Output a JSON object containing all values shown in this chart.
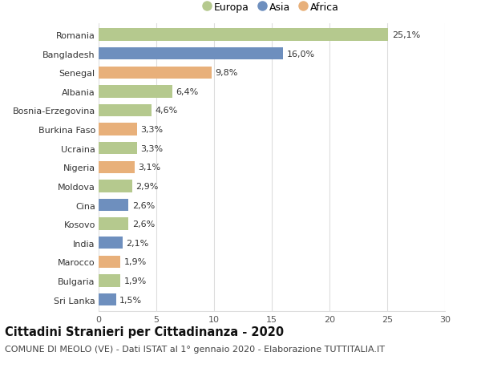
{
  "countries": [
    "Romania",
    "Bangladesh",
    "Senegal",
    "Albania",
    "Bosnia-Erzegovina",
    "Burkina Faso",
    "Ucraina",
    "Nigeria",
    "Moldova",
    "Cina",
    "Kosovo",
    "India",
    "Marocco",
    "Bulgaria",
    "Sri Lanka"
  ],
  "values": [
    25.1,
    16.0,
    9.8,
    6.4,
    4.6,
    3.3,
    3.3,
    3.1,
    2.9,
    2.6,
    2.6,
    2.1,
    1.9,
    1.9,
    1.5
  ],
  "labels": [
    "25,1%",
    "16,0%",
    "9,8%",
    "6,4%",
    "4,6%",
    "3,3%",
    "3,3%",
    "3,1%",
    "2,9%",
    "2,6%",
    "2,6%",
    "2,1%",
    "1,9%",
    "1,9%",
    "1,5%"
  ],
  "continents": [
    "Europa",
    "Asia",
    "Africa",
    "Europa",
    "Europa",
    "Africa",
    "Europa",
    "Africa",
    "Europa",
    "Asia",
    "Europa",
    "Asia",
    "Africa",
    "Europa",
    "Asia"
  ],
  "colors": {
    "Europa": "#b5c98e",
    "Asia": "#6e8fbe",
    "Africa": "#e8b07a"
  },
  "legend_order": [
    "Europa",
    "Asia",
    "Africa"
  ],
  "title": "Cittadini Stranieri per Cittadinanza - 2020",
  "subtitle": "COMUNE DI MEOLO (VE) - Dati ISTAT al 1° gennaio 2020 - Elaborazione TUTTITALIA.IT",
  "xlim": [
    0,
    30
  ],
  "xticks": [
    0,
    5,
    10,
    15,
    20,
    25,
    30
  ],
  "background_color": "#ffffff",
  "grid_color": "#dddddd",
  "bar_height": 0.65,
  "label_fontsize": 8.0,
  "tick_fontsize": 8.0,
  "title_fontsize": 10.5,
  "subtitle_fontsize": 8.0
}
